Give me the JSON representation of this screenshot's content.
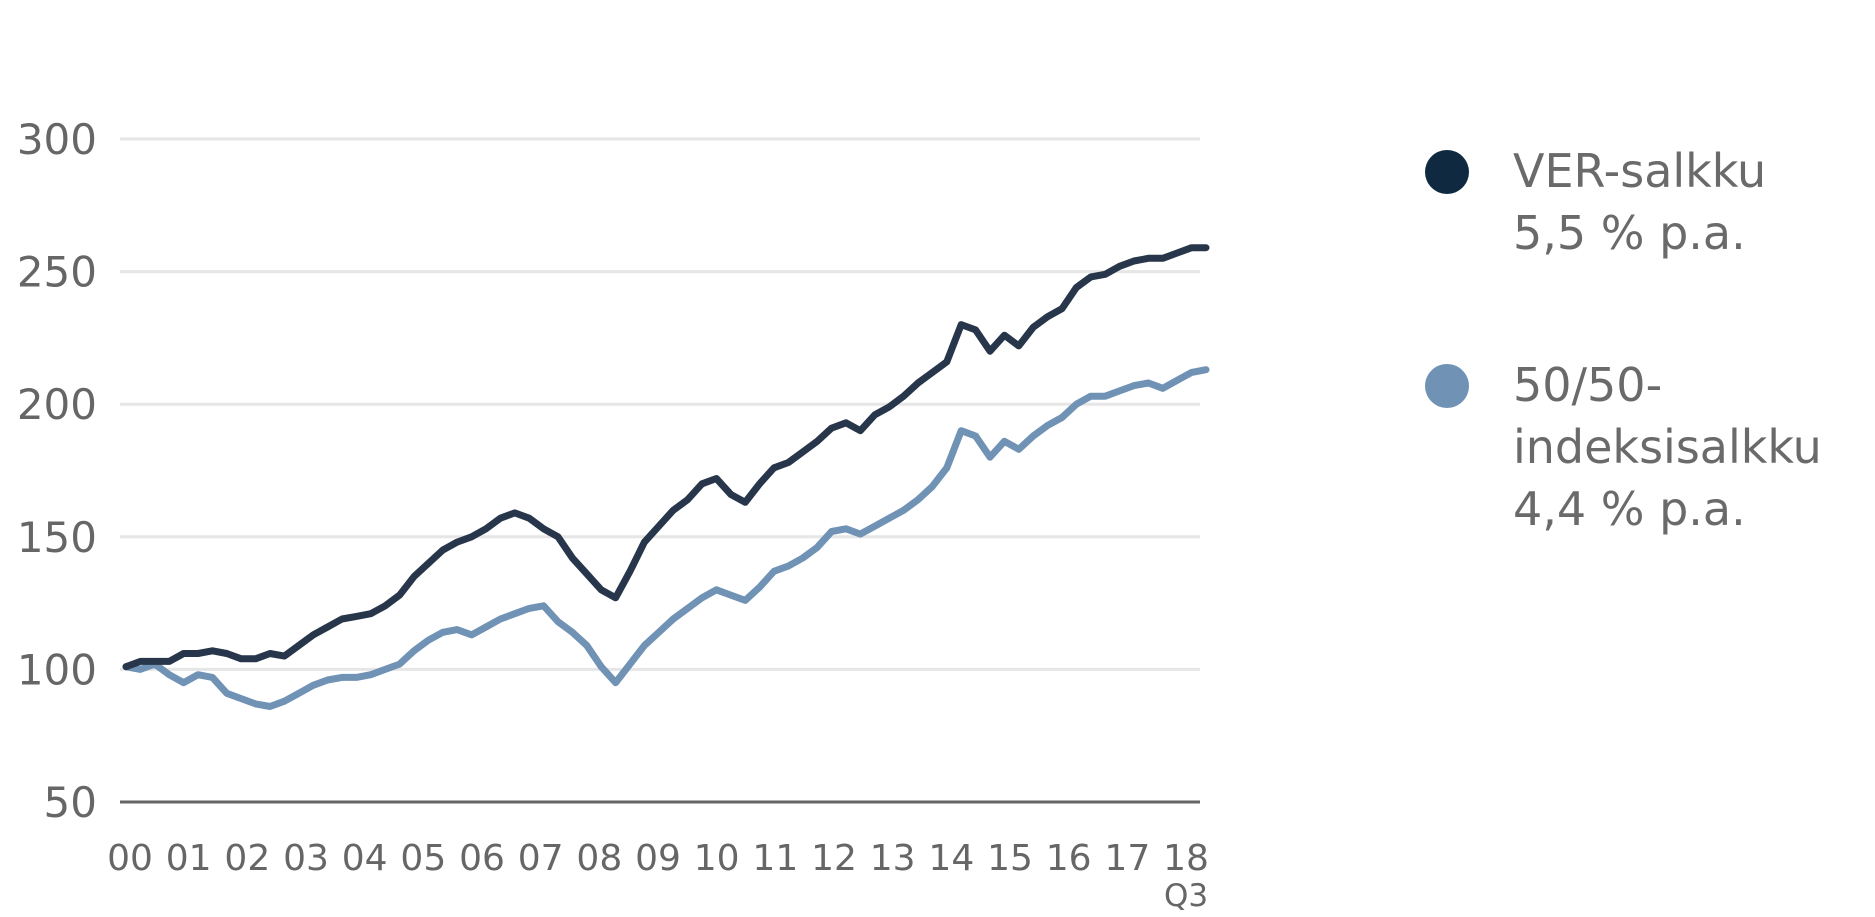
{
  "chart_data": {
    "type": "line",
    "x_tick_labels": [
      "00",
      "01",
      "02",
      "03",
      "04",
      "05",
      "06",
      "07",
      "08",
      "09",
      "10",
      "11",
      "12",
      "13",
      "14",
      "15",
      "16",
      "17",
      "18"
    ],
    "x_sublabel": "Q3",
    "y_ticks": [
      50,
      100,
      150,
      200,
      250,
      300
    ],
    "ylim": [
      50,
      300
    ],
    "xlim": [
      2000.0,
      2018.75
    ],
    "grid": true,
    "legend_position": "right",
    "series": [
      {
        "name": "VER-salkku",
        "stat": "5,5 % p.a.",
        "color": "#27364A",
        "points": [
          [
            2000.0,
            101
          ],
          [
            2000.25,
            103
          ],
          [
            2000.5,
            103
          ],
          [
            2000.75,
            103
          ],
          [
            2001.0,
            106
          ],
          [
            2001.25,
            106
          ],
          [
            2001.5,
            107
          ],
          [
            2001.75,
            106
          ],
          [
            2002.0,
            104
          ],
          [
            2002.25,
            104
          ],
          [
            2002.5,
            106
          ],
          [
            2002.75,
            105
          ],
          [
            2003.0,
            109
          ],
          [
            2003.25,
            113
          ],
          [
            2003.5,
            116
          ],
          [
            2003.75,
            119
          ],
          [
            2004.0,
            120
          ],
          [
            2004.25,
            121
          ],
          [
            2004.5,
            124
          ],
          [
            2004.75,
            128
          ],
          [
            2005.0,
            135
          ],
          [
            2005.25,
            140
          ],
          [
            2005.5,
            145
          ],
          [
            2005.75,
            148
          ],
          [
            2006.0,
            150
          ],
          [
            2006.25,
            153
          ],
          [
            2006.5,
            157
          ],
          [
            2006.75,
            159
          ],
          [
            2007.0,
            157
          ],
          [
            2007.25,
            153
          ],
          [
            2007.5,
            150
          ],
          [
            2007.75,
            142
          ],
          [
            2008.0,
            136
          ],
          [
            2008.25,
            130
          ],
          [
            2008.5,
            127
          ],
          [
            2008.75,
            137
          ],
          [
            2009.0,
            148
          ],
          [
            2009.25,
            154
          ],
          [
            2009.5,
            160
          ],
          [
            2009.75,
            164
          ],
          [
            2010.0,
            170
          ],
          [
            2010.25,
            172
          ],
          [
            2010.5,
            166
          ],
          [
            2010.75,
            163
          ],
          [
            2011.0,
            170
          ],
          [
            2011.25,
            176
          ],
          [
            2011.5,
            178
          ],
          [
            2011.75,
            182
          ],
          [
            2012.0,
            186
          ],
          [
            2012.25,
            191
          ],
          [
            2012.5,
            193
          ],
          [
            2012.75,
            190
          ],
          [
            2013.0,
            196
          ],
          [
            2013.25,
            199
          ],
          [
            2013.5,
            203
          ],
          [
            2013.75,
            208
          ],
          [
            2014.0,
            212
          ],
          [
            2014.25,
            216
          ],
          [
            2014.5,
            230
          ],
          [
            2014.75,
            228
          ],
          [
            2015.0,
            220
          ],
          [
            2015.25,
            226
          ],
          [
            2015.5,
            222
          ],
          [
            2015.75,
            229
          ],
          [
            2016.0,
            233
          ],
          [
            2016.25,
            236
          ],
          [
            2016.5,
            244
          ],
          [
            2016.75,
            248
          ],
          [
            2017.0,
            249
          ],
          [
            2017.25,
            252
          ],
          [
            2017.5,
            254
          ],
          [
            2017.75,
            255
          ],
          [
            2018.0,
            255
          ],
          [
            2018.25,
            257
          ],
          [
            2018.5,
            259
          ],
          [
            2018.75,
            259
          ]
        ]
      },
      {
        "name": "50/50-indeksisalkku",
        "name_lines": [
          "50/50-",
          "indeksisalkku"
        ],
        "stat": "4,4 % p.a.",
        "color": "#7092B5",
        "points": [
          [
            2000.0,
            101
          ],
          [
            2000.25,
            100
          ],
          [
            2000.5,
            102
          ],
          [
            2000.75,
            98
          ],
          [
            2001.0,
            95
          ],
          [
            2001.25,
            98
          ],
          [
            2001.5,
            97
          ],
          [
            2001.75,
            91
          ],
          [
            2002.0,
            89
          ],
          [
            2002.25,
            87
          ],
          [
            2002.5,
            86
          ],
          [
            2002.75,
            88
          ],
          [
            2003.0,
            91
          ],
          [
            2003.25,
            94
          ],
          [
            2003.5,
            96
          ],
          [
            2003.75,
            97
          ],
          [
            2004.0,
            97
          ],
          [
            2004.25,
            98
          ],
          [
            2004.5,
            100
          ],
          [
            2004.75,
            102
          ],
          [
            2005.0,
            107
          ],
          [
            2005.25,
            111
          ],
          [
            2005.5,
            114
          ],
          [
            2005.75,
            115
          ],
          [
            2006.0,
            113
          ],
          [
            2006.25,
            116
          ],
          [
            2006.5,
            119
          ],
          [
            2006.75,
            121
          ],
          [
            2007.0,
            123
          ],
          [
            2007.25,
            124
          ],
          [
            2007.5,
            118
          ],
          [
            2007.75,
            114
          ],
          [
            2008.0,
            109
          ],
          [
            2008.25,
            101
          ],
          [
            2008.5,
            95
          ],
          [
            2008.75,
            102
          ],
          [
            2009.0,
            109
          ],
          [
            2009.25,
            114
          ],
          [
            2009.5,
            119
          ],
          [
            2009.75,
            123
          ],
          [
            2010.0,
            127
          ],
          [
            2010.25,
            130
          ],
          [
            2010.5,
            128
          ],
          [
            2010.75,
            126
          ],
          [
            2011.0,
            131
          ],
          [
            2011.25,
            137
          ],
          [
            2011.5,
            139
          ],
          [
            2011.75,
            142
          ],
          [
            2012.0,
            146
          ],
          [
            2012.25,
            152
          ],
          [
            2012.5,
            153
          ],
          [
            2012.75,
            151
          ],
          [
            2013.0,
            154
          ],
          [
            2013.25,
            157
          ],
          [
            2013.5,
            160
          ],
          [
            2013.75,
            164
          ],
          [
            2014.0,
            169
          ],
          [
            2014.25,
            176
          ],
          [
            2014.5,
            190
          ],
          [
            2014.75,
            188
          ],
          [
            2015.0,
            180
          ],
          [
            2015.25,
            186
          ],
          [
            2015.5,
            183
          ],
          [
            2015.75,
            188
          ],
          [
            2016.0,
            192
          ],
          [
            2016.25,
            195
          ],
          [
            2016.5,
            200
          ],
          [
            2016.75,
            203
          ],
          [
            2017.0,
            203
          ],
          [
            2017.25,
            205
          ],
          [
            2017.5,
            207
          ],
          [
            2017.75,
            208
          ],
          [
            2018.0,
            206
          ],
          [
            2018.25,
            209
          ],
          [
            2018.5,
            212
          ],
          [
            2018.75,
            213
          ]
        ]
      }
    ]
  }
}
